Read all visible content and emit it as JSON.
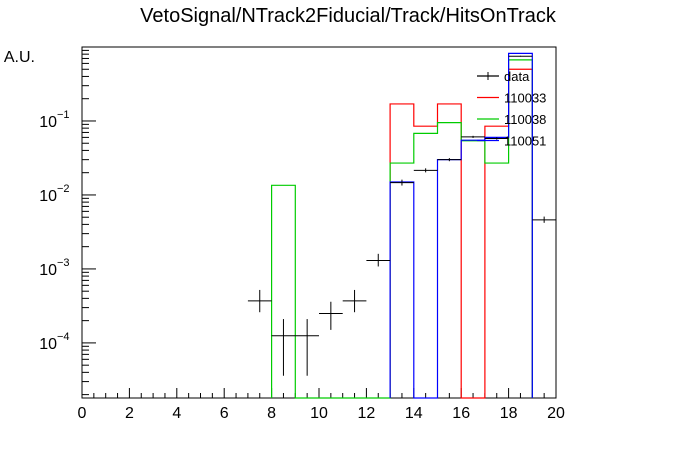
{
  "chart_data": {
    "type": "line",
    "title": "VetoSignal/NTrack2Fiducial/Track/HitsOnTrack",
    "xlabel": "",
    "ylabel": "A.U.",
    "xlim": [
      0,
      20
    ],
    "ylim": [
      1.8e-05,
      1.0
    ],
    "yscale": "log",
    "x_ticks": [
      "0",
      "2",
      "4",
      "6",
      "8",
      "10",
      "12",
      "14",
      "16",
      "18",
      "20"
    ],
    "y_ticks": [
      {
        "value": 0.1,
        "base": "10",
        "exp": "−1"
      },
      {
        "value": 0.01,
        "base": "10",
        "exp": "−2"
      },
      {
        "value": 0.001,
        "base": "10",
        "exp": "−3"
      },
      {
        "value": 0.0001,
        "base": "10",
        "exp": "−4"
      }
    ],
    "legend_position": "top-right",
    "series": [
      {
        "name": "data",
        "style": "points",
        "color": "#000000",
        "points": [
          {
            "x": 7.5,
            "y": 0.00037,
            "lo": 0.00026,
            "hi": 0.00052
          },
          {
            "x": 8.5,
            "y": 0.000125,
            "lo": 3.6e-05,
            "hi": 0.00021
          },
          {
            "x": 9.5,
            "y": 0.000125,
            "lo": 3.6e-05,
            "hi": 0.00021
          },
          {
            "x": 10.5,
            "y": 0.00025,
            "lo": 0.00015,
            "hi": 0.00036
          },
          {
            "x": 11.5,
            "y": 0.00037,
            "lo": 0.00026,
            "hi": 0.00052
          },
          {
            "x": 12.5,
            "y": 0.0013,
            "lo": 0.00108,
            "hi": 0.0016
          },
          {
            "x": 13.5,
            "y": 0.0147,
            "lo": 0.0134,
            "hi": 0.0161
          },
          {
            "x": 14.5,
            "y": 0.0215,
            "lo": 0.0202,
            "hi": 0.0229
          },
          {
            "x": 15.5,
            "y": 0.03,
            "lo": 0.0286,
            "hi": 0.0315
          },
          {
            "x": 16.5,
            "y": 0.061,
            "lo": 0.059,
            "hi": 0.063
          },
          {
            "x": 17.5,
            "y": 0.058,
            "lo": 0.056,
            "hi": 0.06
          },
          {
            "x": 18.5,
            "y": 0.75,
            "lo": 0.74,
            "hi": 0.76
          },
          {
            "x": 19.5,
            "y": 0.0046,
            "lo": 0.0042,
            "hi": 0.0051
          }
        ]
      },
      {
        "name": "110033",
        "style": "hist",
        "color": "#ff0000",
        "edges": [
          13,
          14,
          15,
          16,
          17,
          18,
          19
        ],
        "values": [
          0.17,
          0.085,
          0.17,
          0.0,
          0.085,
          0.5
        ]
      },
      {
        "name": "110038",
        "style": "hist",
        "color": "#00cc00",
        "edges": [
          8,
          9,
          10,
          11,
          12,
          13,
          14,
          15,
          16,
          17,
          18,
          19
        ],
        "values": [
          0.0135,
          0.0,
          0.0,
          0.0,
          0.0,
          0.027,
          0.068,
          0.095,
          0.054,
          0.027,
          0.67
        ]
      },
      {
        "name": "110051",
        "style": "hist",
        "color": "#0000ff",
        "edges": [
          13,
          14,
          15,
          16,
          17,
          18,
          19
        ],
        "values": [
          0.015,
          0.0,
          0.03,
          0.055,
          0.06,
          0.82
        ]
      }
    ]
  }
}
